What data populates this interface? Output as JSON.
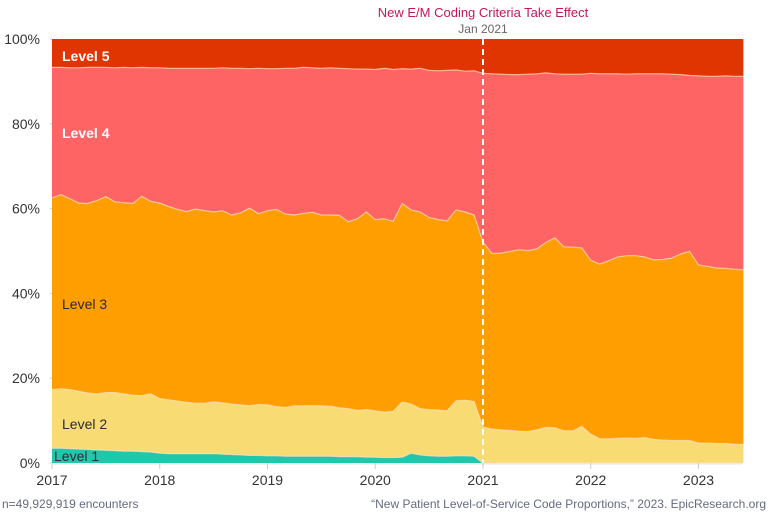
{
  "chart_data": {
    "type": "area",
    "stacked": true,
    "normalized": true,
    "title": "",
    "xlabel": "",
    "ylabel": "",
    "xlim": [
      2017,
      2023.42
    ],
    "ylim": [
      0,
      100
    ],
    "x_ticks": [
      2017,
      2018,
      2019,
      2020,
      2021,
      2022,
      2023
    ],
    "x_tick_labels": [
      "2017",
      "2018",
      "2019",
      "2020",
      "2021",
      "2022",
      "2023"
    ],
    "y_ticks": [
      0,
      20,
      40,
      60,
      80,
      100
    ],
    "y_tick_labels": [
      "0%",
      "20%",
      "40%",
      "60%",
      "80%",
      "100%"
    ],
    "grid": false,
    "annotation": {
      "x": 2021,
      "title": "New E/M Coding Criteria Take Effect",
      "subtitle": "Jan 2021",
      "title_color": "#c2185b",
      "line_style": "dashed",
      "line_color": "#ffffff"
    },
    "x": [
      2017.0,
      2017.083,
      2017.167,
      2017.25,
      2017.333,
      2017.417,
      2017.5,
      2017.583,
      2017.667,
      2017.75,
      2017.833,
      2017.917,
      2018.0,
      2018.083,
      2018.167,
      2018.25,
      2018.333,
      2018.417,
      2018.5,
      2018.583,
      2018.667,
      2018.75,
      2018.833,
      2018.917,
      2019.0,
      2019.083,
      2019.167,
      2019.25,
      2019.333,
      2019.417,
      2019.5,
      2019.583,
      2019.667,
      2019.75,
      2019.833,
      2019.917,
      2020.0,
      2020.083,
      2020.167,
      2020.25,
      2020.333,
      2020.417,
      2020.5,
      2020.583,
      2020.667,
      2020.75,
      2020.833,
      2020.917,
      2021.0,
      2021.083,
      2021.167,
      2021.25,
      2021.333,
      2021.417,
      2021.5,
      2021.583,
      2021.667,
      2021.75,
      2021.833,
      2021.917,
      2022.0,
      2022.083,
      2022.167,
      2022.25,
      2022.333,
      2022.417,
      2022.5,
      2022.583,
      2022.667,
      2022.75,
      2022.833,
      2022.917,
      2023.0,
      2023.083,
      2023.167,
      2023.25,
      2023.333,
      2023.417
    ],
    "series": [
      {
        "name": "Level 1",
        "color": "#1fc8aa",
        "values": [
          3.5,
          3.5,
          3.4,
          3.3,
          3.2,
          3.1,
          3.0,
          2.9,
          2.8,
          2.8,
          2.7,
          2.6,
          2.3,
          2.2,
          2.2,
          2.2,
          2.2,
          2.2,
          2.2,
          2.1,
          2.0,
          1.9,
          1.8,
          1.8,
          1.7,
          1.7,
          1.6,
          1.6,
          1.6,
          1.6,
          1.6,
          1.6,
          1.5,
          1.5,
          1.5,
          1.4,
          1.4,
          1.3,
          1.3,
          1.4,
          2.3,
          1.9,
          1.7,
          1.6,
          1.6,
          1.7,
          1.7,
          1.6,
          0.0,
          0.0,
          0.0,
          0.0,
          0.0,
          0.0,
          0.0,
          0.0,
          0.0,
          0.0,
          0.0,
          0.0,
          0.0,
          0.0,
          0.0,
          0.0,
          0.0,
          0.0,
          0.0,
          0.0,
          0.0,
          0.0,
          0.0,
          0.0,
          0.0,
          0.0,
          0.0,
          0.0,
          0.0,
          0.0
        ]
      },
      {
        "name": "Level 2",
        "color": "#f9db74",
        "values": [
          13.8,
          14.0,
          13.9,
          13.6,
          13.3,
          13.2,
          13.6,
          13.7,
          13.5,
          13.2,
          13.2,
          13.7,
          12.9,
          12.7,
          12.4,
          12.1,
          11.9,
          11.9,
          12.2,
          12.1,
          11.9,
          11.8,
          11.7,
          12.0,
          12.0,
          11.6,
          11.5,
          11.9,
          11.9,
          11.9,
          11.9,
          11.8,
          11.5,
          11.3,
          10.9,
          11.2,
          10.9,
          10.7,
          10.9,
          13.0,
          11.6,
          10.9,
          10.9,
          10.9,
          10.7,
          13.0,
          13.1,
          12.9,
          8.5,
          8.0,
          7.8,
          7.7,
          7.5,
          7.4,
          7.8,
          8.4,
          8.3,
          7.6,
          7.6,
          8.6,
          6.8,
          5.7,
          5.7,
          5.8,
          5.9,
          5.8,
          6.0,
          5.6,
          5.4,
          5.3,
          5.3,
          5.3,
          4.7,
          4.7,
          4.6,
          4.6,
          4.4,
          4.4
        ]
      },
      {
        "name": "Level 3",
        "color": "#ff9e00",
        "values": [
          45.2,
          45.8,
          45.0,
          44.4,
          44.7,
          45.6,
          46.2,
          45.0,
          45.1,
          45.2,
          47.0,
          45.4,
          46.1,
          45.6,
          45.2,
          45.0,
          45.8,
          45.4,
          44.8,
          45.3,
          44.6,
          45.3,
          46.6,
          45.0,
          45.8,
          46.5,
          45.6,
          45.0,
          45.4,
          45.6,
          45.0,
          45.1,
          45.4,
          44.1,
          45.2,
          46.6,
          45.1,
          45.6,
          44.8,
          46.8,
          45.8,
          46.4,
          45.3,
          44.9,
          44.8,
          45.0,
          44.4,
          44.0,
          43.6,
          41.4,
          41.7,
          42.2,
          42.8,
          42.7,
          42.7,
          43.6,
          44.8,
          43.4,
          43.3,
          42.1,
          41.0,
          41.2,
          42.0,
          42.8,
          43.0,
          43.1,
          42.6,
          42.3,
          42.6,
          43.0,
          44.0,
          44.6,
          42.0,
          41.7,
          41.4,
          41.3,
          41.3,
          41.2
        ]
      },
      {
        "name": "Level 4",
        "color": "#ff6464",
        "values": [
          30.8,
          30.0,
          30.9,
          31.9,
          32.1,
          31.4,
          30.5,
          31.6,
          31.9,
          32.0,
          30.4,
          31.5,
          31.9,
          32.6,
          33.3,
          33.8,
          33.2,
          33.6,
          33.9,
          33.7,
          34.6,
          34.1,
          32.9,
          34.3,
          33.5,
          33.2,
          34.4,
          34.6,
          34.4,
          34.1,
          34.6,
          34.7,
          34.7,
          36.1,
          35.3,
          33.7,
          35.4,
          35.5,
          35.8,
          31.8,
          33.2,
          33.9,
          34.7,
          35.1,
          35.5,
          33.0,
          33.2,
          34.0,
          39.8,
          42.4,
          42.2,
          41.7,
          41.3,
          41.6,
          41.3,
          40.0,
          38.7,
          40.7,
          40.8,
          41.0,
          44.1,
          44.9,
          44.1,
          43.2,
          42.8,
          42.9,
          43.2,
          43.9,
          43.8,
          43.4,
          42.3,
          41.5,
          44.6,
          44.8,
          45.2,
          45.4,
          45.5,
          45.6
        ]
      },
      {
        "name": "Level 5",
        "color": "#e03500",
        "values": [
          6.7,
          6.7,
          6.8,
          6.8,
          6.7,
          6.7,
          6.7,
          6.8,
          6.7,
          6.8,
          6.7,
          6.8,
          6.8,
          6.9,
          6.9,
          6.9,
          6.9,
          6.9,
          6.9,
          6.8,
          6.9,
          6.9,
          7.0,
          6.9,
          7.0,
          7.0,
          6.9,
          6.9,
          6.7,
          6.8,
          6.9,
          6.8,
          6.9,
          7.0,
          7.1,
          7.1,
          7.2,
          6.9,
          7.2,
          7.0,
          7.1,
          6.9,
          7.4,
          7.5,
          7.4,
          7.3,
          7.6,
          7.5,
          8.1,
          8.2,
          8.3,
          8.4,
          8.4,
          8.3,
          8.2,
          8.0,
          8.2,
          8.3,
          8.3,
          8.3,
          8.1,
          8.2,
          8.2,
          8.2,
          8.3,
          8.2,
          8.2,
          8.2,
          8.2,
          8.3,
          8.4,
          8.6,
          8.7,
          8.8,
          8.8,
          8.7,
          8.8,
          8.8
        ]
      }
    ],
    "series_labels": [
      {
        "name": "Level 1",
        "text": "Level 1",
        "style": "dark"
      },
      {
        "name": "Level 2",
        "text": "Level 2",
        "style": "dark"
      },
      {
        "name": "Level 3",
        "text": "Level 3",
        "style": "dark"
      },
      {
        "name": "Level 4",
        "text": "Level 4",
        "style": "white"
      },
      {
        "name": "Level 5",
        "text": "Level 5",
        "style": "white"
      }
    ],
    "footnote_left": "n=49,929,919 encounters",
    "footnote_right": "“New Patient Level-of-Service Code Proportions,” 2023. EpicResearch.org"
  }
}
